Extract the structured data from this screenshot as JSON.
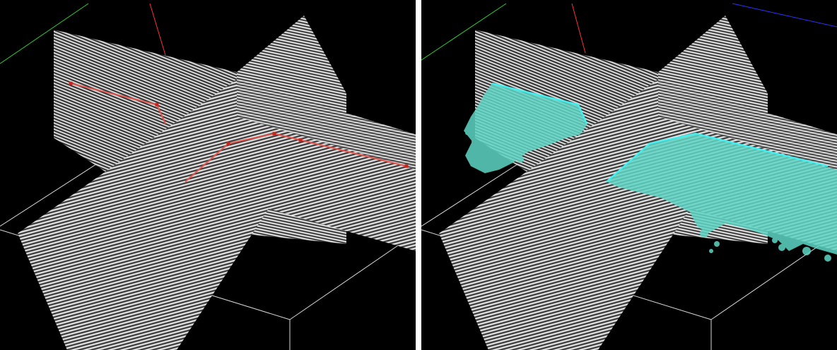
{
  "panels": [
    {
      "id": "left",
      "interpretation": "fault-picks",
      "pick_color": "#e5534b",
      "pick_marker_color": "#c7261f"
    },
    {
      "id": "right",
      "interpretation": "fault-surface",
      "line_color": "#40f0f0",
      "surface_color": "#5fd6c5"
    }
  ],
  "scene": {
    "background": "#000000",
    "section_gray": "#8c8c8c",
    "box_line": "#d8d8d8",
    "axis_colors": {
      "x": "#ff3030",
      "y": "#30d030",
      "z": "#3030ff"
    }
  }
}
